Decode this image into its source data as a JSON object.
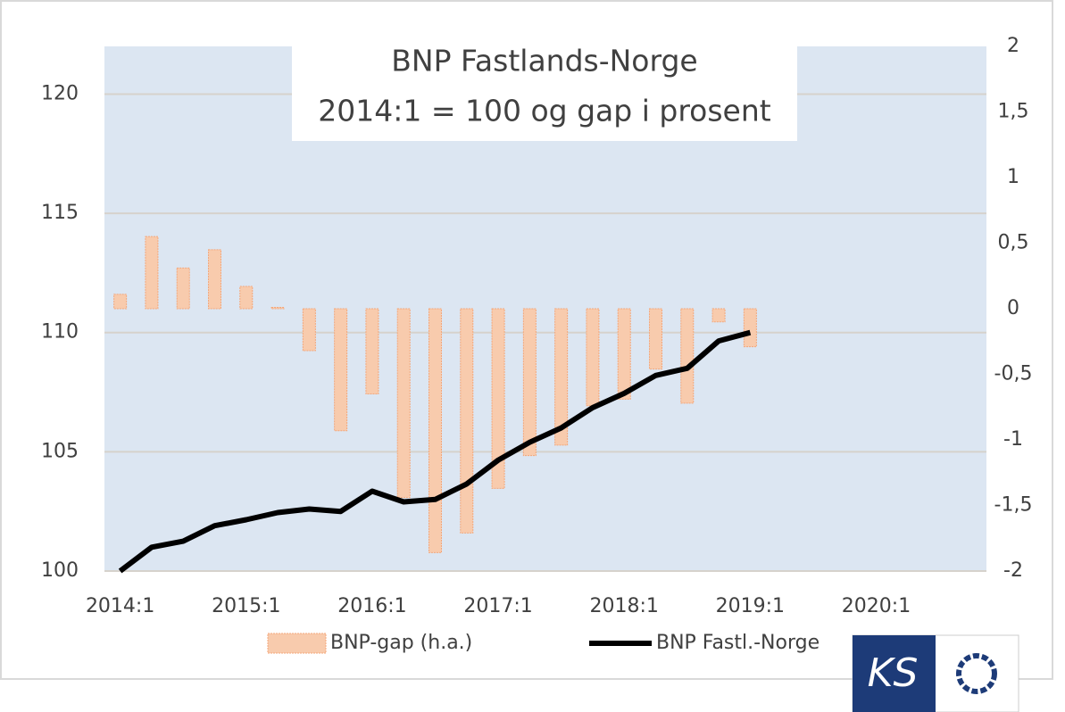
{
  "chart_data": {
    "type": "bar-line",
    "title": [
      "BNP Fastlands-Norge",
      "2014:1 = 100 og gap i prosent"
    ],
    "categories": [
      "2014:1",
      null,
      null,
      null,
      "2015:1",
      null,
      null,
      null,
      "2016:1",
      null,
      null,
      null,
      "2017:1",
      null,
      null,
      null,
      "2018:1",
      null,
      null,
      null,
      "2019:1",
      null,
      null,
      null,
      "2020:1",
      null,
      null,
      null
    ],
    "series": [
      {
        "name": "BNP-gap (h.a.)",
        "type": "bar",
        "axis": "y2",
        "color": "#f8cbad",
        "edge": "#f4a77a",
        "values": [
          0.11,
          0.55,
          0.31,
          0.45,
          0.17,
          0.01,
          -0.32,
          -0.93,
          -0.65,
          -1.44,
          -1.86,
          -1.71,
          -1.37,
          -1.12,
          -1.04,
          -0.74,
          -0.69,
          -0.46,
          -0.72,
          -0.1,
          -0.29,
          null,
          null,
          null,
          null,
          null,
          null,
          null
        ]
      },
      {
        "name": "BNP Fastl.-Norge",
        "type": "line",
        "color": "#000000",
        "values": [
          100,
          101.0,
          101.25,
          101.9,
          102.15,
          102.45,
          102.6,
          102.5,
          103.35,
          102.9,
          103.0,
          103.65,
          104.65,
          105.4,
          106.0,
          106.85,
          107.45,
          108.2,
          108.5,
          109.65,
          110.0,
          null,
          null,
          null,
          null,
          null,
          null,
          null
        ]
      }
    ],
    "ylim": [
      100,
      122
    ],
    "yticks": [
      100,
      105,
      110,
      115,
      120
    ],
    "y2lim": [
      -2,
      2
    ],
    "y2ticks": [
      -2,
      {
        "value": -1.5,
        "label": "-1,5"
      },
      -1,
      {
        "value": -0.5,
        "label": "-0,5"
      },
      0,
      {
        "value": 0.5,
        "label": "0,5"
      },
      1,
      {
        "value": 1.5,
        "label": "1,5"
      },
      2
    ],
    "grid": true,
    "legend": "bottom",
    "plot_background": "#dce6f2",
    "logo": "KS"
  }
}
